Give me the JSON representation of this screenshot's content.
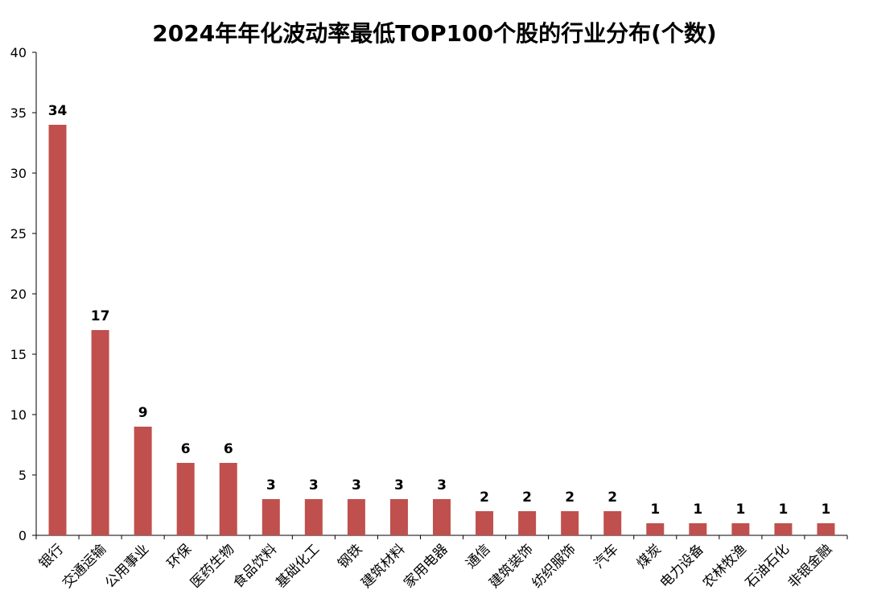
{
  "chart_data": {
    "type": "bar",
    "title": "2024年年化波动率最低TOP100个股的行业分布(个数)",
    "xlabel": "",
    "ylabel": "",
    "ylim": [
      0,
      40
    ],
    "yticks": [
      0,
      5,
      10,
      15,
      20,
      25,
      30,
      35,
      40
    ],
    "categories": [
      "银行",
      "交通运输",
      "公用事业",
      "环保",
      "医药生物",
      "食品饮料",
      "基础化工",
      "钢铁",
      "建筑材料",
      "家用电器",
      "通信",
      "建筑装饰",
      "纺织服饰",
      "汽车",
      "煤炭",
      "电力设备",
      "农林牧渔",
      "石油石化",
      "非银金融"
    ],
    "values": [
      34,
      17,
      9,
      6,
      6,
      3,
      3,
      3,
      3,
      3,
      2,
      2,
      2,
      2,
      1,
      1,
      1,
      1,
      1
    ],
    "bar_color": "#c0504d",
    "grid": false,
    "legend": "none"
  }
}
